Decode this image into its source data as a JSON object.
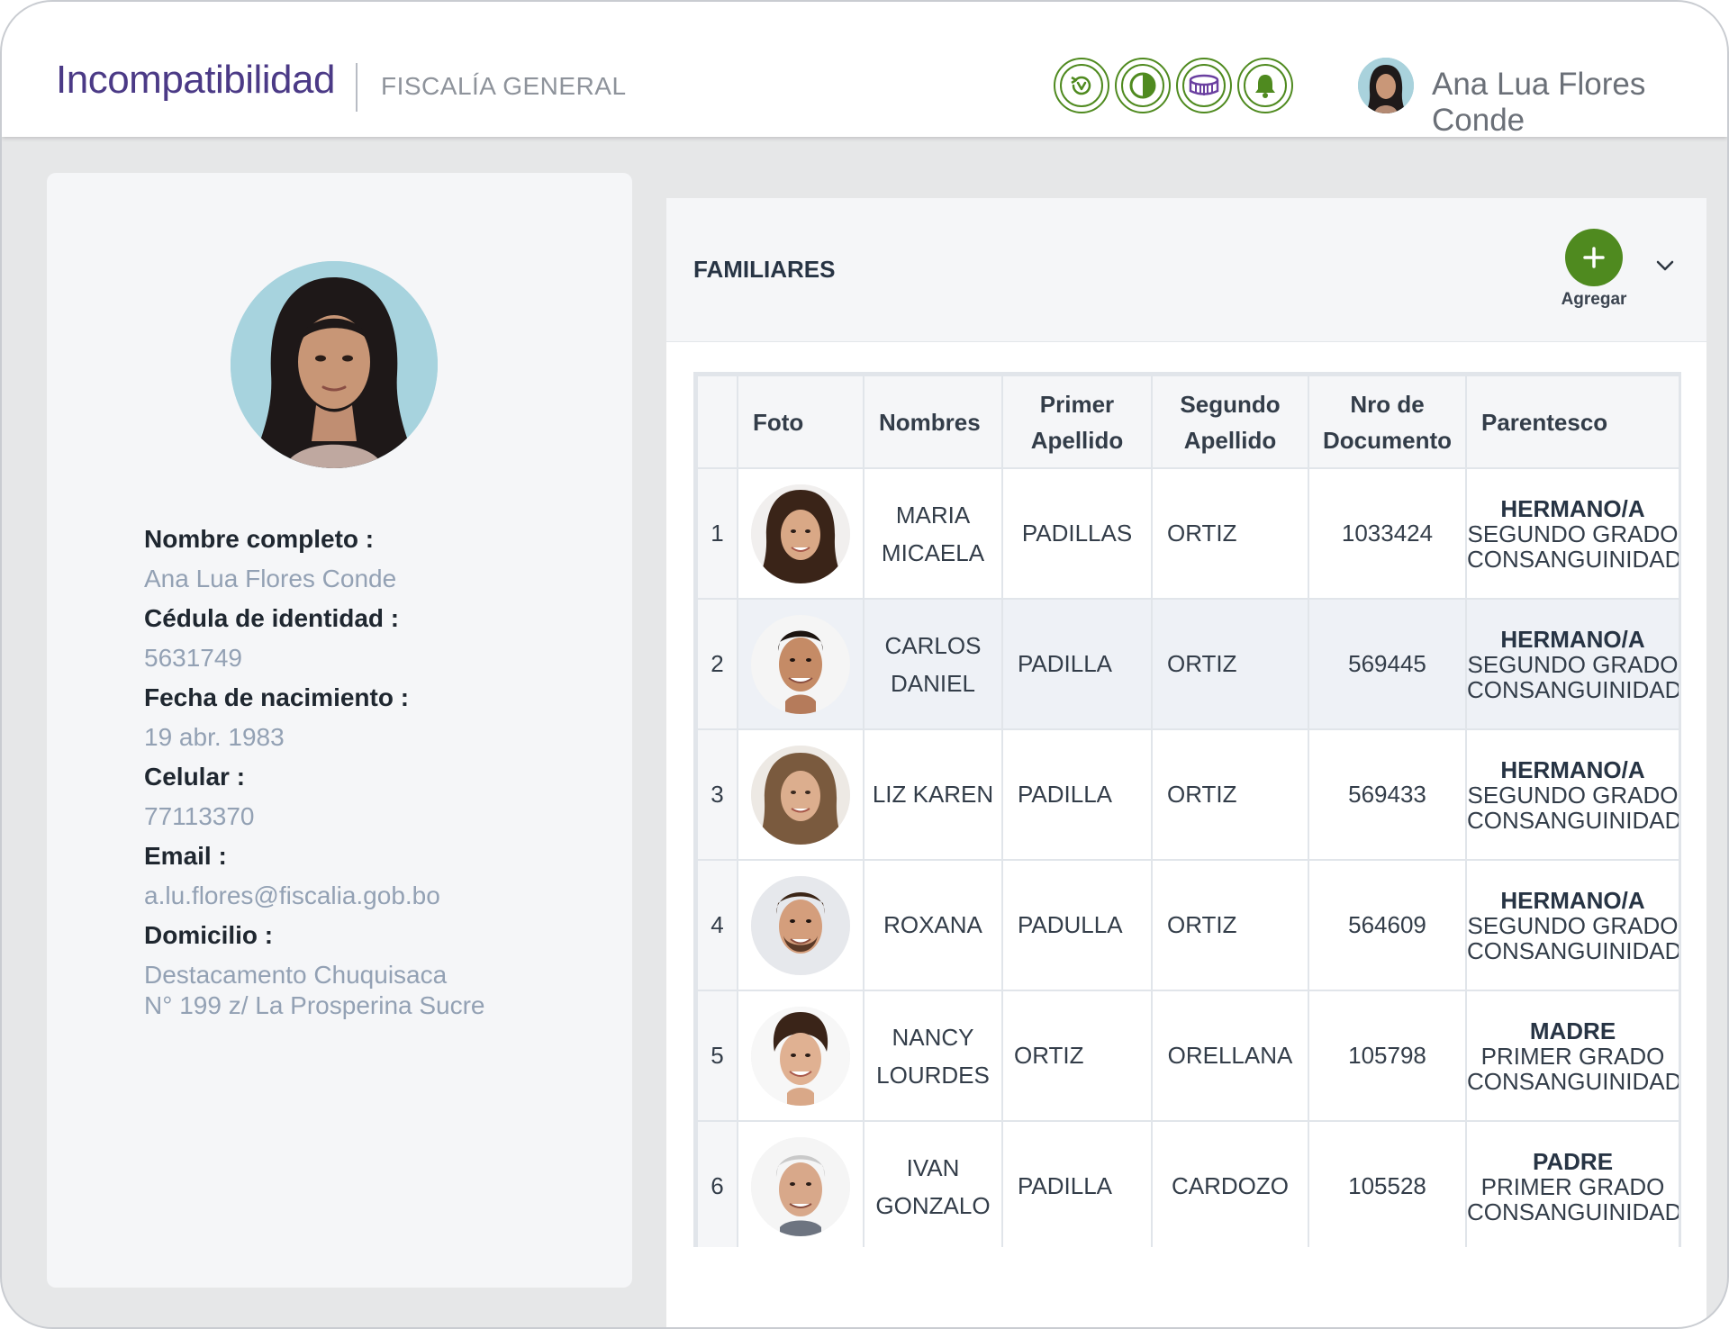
{
  "header": {
    "app_title": "Incompatibilidad",
    "subtitle": "FISCALÍA GENERAL",
    "tools": [
      {
        "icon": "history-icon"
      },
      {
        "icon": "contrast-icon"
      },
      {
        "icon": "stadium-icon"
      },
      {
        "icon": "bell-icon"
      }
    ],
    "user_name": "Ana Lua Flores Conde"
  },
  "profile": {
    "fields": [
      {
        "label": "Nombre completo :",
        "value": "Ana Lua Flores Conde"
      },
      {
        "label": "Cédula de identidad :",
        "value": "5631749"
      },
      {
        "label": "Fecha de nacimiento :",
        "value": "19 abr. 1983"
      },
      {
        "label": "Celular :",
        "value": "77113370"
      },
      {
        "label": "Email :",
        "value": "a.lu.flores@fiscalia.gob.bo"
      },
      {
        "label": "Domicilio :",
        "value_line1": "Destacamento Chuquisaca",
        "value_line2": "N° 199 z/ La Prosperina Sucre"
      }
    ]
  },
  "familiares": {
    "title": "FAMILIARES",
    "add_label": "Agregar",
    "columns": {
      "foto": "Foto",
      "nombres": "Nombres",
      "primer_1": "Primer",
      "primer_2": "Apellido",
      "segundo_1": "Segundo",
      "segundo_2": "Apellido",
      "doc_1": "Nro de",
      "doc_2": "Documento",
      "parentesco": "Parentesco"
    },
    "rows": [
      {
        "idx": "1",
        "name1": "MARIA",
        "name2": "MICAELA",
        "primer": "PADILLAS",
        "segundo": "ORTIZ",
        "doc": "1033424",
        "par": "HERMANO/A",
        "par1": "SEGUNDO GRADO",
        "par2": "CONSANGUINIDAD"
      },
      {
        "idx": "2",
        "name1": "CARLOS",
        "name2": "DANIEL",
        "primer": "PADILLA",
        "segundo": "ORTIZ",
        "doc": "569445",
        "par": "HERMANO/A",
        "par1": "SEGUNDO GRADO",
        "par2": "CONSANGUINIDAD"
      },
      {
        "idx": "3",
        "name1": "LIZ KAREN",
        "name2": "",
        "primer": "PADILLA",
        "segundo": "ORTIZ",
        "doc": "569433",
        "par": "HERMANO/A",
        "par1": "SEGUNDO GRADO",
        "par2": "CONSANGUINIDAD"
      },
      {
        "idx": "4",
        "name1": "ROXANA",
        "name2": "",
        "primer": "PADULLA",
        "segundo": "ORTIZ",
        "doc": "564609",
        "par": "HERMANO/A",
        "par1": "SEGUNDO GRADO",
        "par2": "CONSANGUINIDAD"
      },
      {
        "idx": "5",
        "name1": "NANCY",
        "name2": "LOURDES",
        "primer": "ORTIZ",
        "segundo": "ORELLANA",
        "doc": "105798",
        "par": "MADRE",
        "par1": "PRIMER GRADO",
        "par2": "CONSANGUINIDAD"
      },
      {
        "idx": "6",
        "name1": "IVAN",
        "name2": "GONZALO",
        "primer": "PADILLA",
        "segundo": "CARDOZO",
        "doc": "105528",
        "par": "PADRE",
        "par1": "PRIMER GRADO",
        "par2": "CONSANGUINIDAD"
      }
    ]
  },
  "colors": {
    "brand_purple": "#4b3a86",
    "accent_green": "#4f8a1f",
    "muted_value": "#93a1b4"
  }
}
